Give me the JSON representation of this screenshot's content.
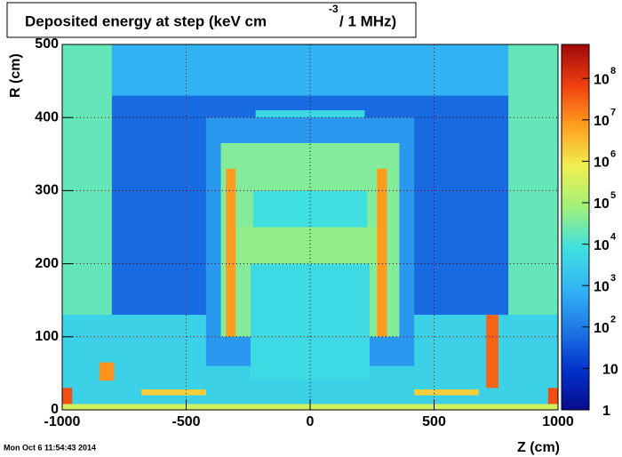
{
  "chart_data": {
    "type": "heatmap",
    "title": [
      "Deposited energy at step (keV cm",
      "-3",
      "/ 1 MHz)"
    ],
    "x_label": "Z (cm)",
    "y_label": "R (cm)",
    "footer": "Mon Oct  6 11:54:43 2014",
    "xlim": [
      -1000,
      1000
    ],
    "xticks": [
      -1000,
      -500,
      0,
      500,
      1000
    ],
    "ylim": [
      0,
      500
    ],
    "yticks": [
      0,
      100,
      200,
      300,
      400,
      500
    ],
    "grid": true,
    "zlim": [
      1,
      660000000
    ],
    "zscale": "log",
    "zticks": [
      {
        "value": 1,
        "label": "1"
      },
      {
        "value": 10,
        "label": "10"
      },
      {
        "value": 100,
        "label": "10",
        "sup": "2"
      },
      {
        "value": 1000,
        "label": "10",
        "sup": "3"
      },
      {
        "value": 10000,
        "label": "10",
        "sup": "4"
      },
      {
        "value": 100000,
        "label": "10",
        "sup": "5"
      },
      {
        "value": 1000000,
        "label": "10",
        "sup": "6"
      },
      {
        "value": 10000000,
        "label": "10",
        "sup": "7"
      },
      {
        "value": 100000000,
        "label": "10",
        "sup": "8"
      }
    ],
    "palette": [
      "#0a0a8c",
      "#0033cc",
      "#1f78e6",
      "#33b5f5",
      "#3fe0e0",
      "#a0f07a",
      "#f0f050",
      "#ffa020",
      "#f04010",
      "#a00a0a"
    ],
    "regions": [
      {
        "z": [
          -1000,
          1000
        ],
        "r": [
          0,
          500
        ],
        "value": 2000
      },
      {
        "z": [
          -800,
          800
        ],
        "r": [
          430,
          500
        ],
        "value": 800
      },
      {
        "z": [
          -800,
          800
        ],
        "r": [
          130,
          430
        ],
        "value": 60
      },
      {
        "z": [
          -1000,
          -800
        ],
        "r": [
          130,
          500
        ],
        "value": 20000
      },
      {
        "z": [
          800,
          1000
        ],
        "r": [
          130,
          500
        ],
        "value": 20000
      },
      {
        "z": [
          -1000,
          1000
        ],
        "r": [
          0,
          130
        ],
        "value": 4000
      },
      {
        "z": [
          -420,
          420
        ],
        "r": [
          60,
          400
        ],
        "value": 300
      },
      {
        "z": [
          -360,
          360
        ],
        "r": [
          100,
          365
        ],
        "value": 40000
      },
      {
        "z": [
          -230,
          230
        ],
        "r": [
          230,
          300
        ],
        "value": 8000
      },
      {
        "z": [
          -310,
          300
        ],
        "r": [
          200,
          250
        ],
        "value": 60000
      },
      {
        "z": [
          -240,
          240
        ],
        "r": [
          40,
          200
        ],
        "value": 6000
      },
      {
        "z": [
          -340,
          -300
        ],
        "r": [
          100,
          330
        ],
        "value": 8000000
      },
      {
        "z": [
          270,
          310
        ],
        "r": [
          100,
          330
        ],
        "value": 8000000
      },
      {
        "z": [
          -220,
          220
        ],
        "r": [
          400,
          410
        ],
        "value": 5000
      },
      {
        "z": [
          -850,
          -790
        ],
        "r": [
          40,
          65
        ],
        "value": 10000000
      },
      {
        "z": [
          710,
          760
        ],
        "r": [
          30,
          130
        ],
        "value": 30000000
      },
      {
        "z": [
          -1000,
          -960
        ],
        "r": [
          0,
          30
        ],
        "value": 50000000
      },
      {
        "z": [
          960,
          1000
        ],
        "r": [
          0,
          30
        ],
        "value": 50000000
      },
      {
        "z": [
          -680,
          -420
        ],
        "r": [
          20,
          28
        ],
        "value": 2000000
      },
      {
        "z": [
          420,
          680
        ],
        "r": [
          20,
          28
        ],
        "value": 2000000
      },
      {
        "z": [
          -1000,
          1000
        ],
        "r": [
          0,
          8
        ],
        "value": 300000
      }
    ]
  }
}
